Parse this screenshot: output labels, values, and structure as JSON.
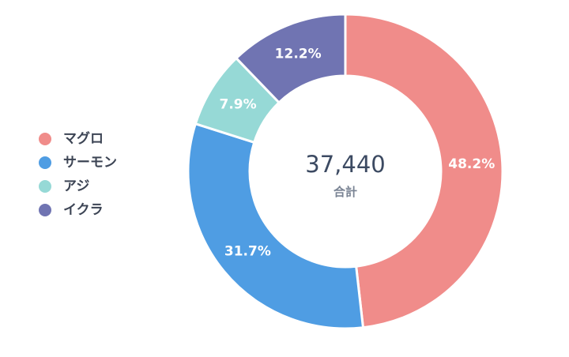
{
  "chart_data": {
    "type": "pie",
    "categories": [
      "マグロ",
      "サーモン",
      "アジ",
      "イクラ"
    ],
    "values": [
      48.2,
      31.7,
      7.9,
      12.2
    ],
    "value_labels": [
      "48.2%",
      "31.7%",
      "7.9%",
      "12.2%"
    ],
    "colors": [
      "#f08c8a",
      "#4f9de3",
      "#96d9d6",
      "#7074b2"
    ],
    "center_total": "37,440",
    "center_label": "合計",
    "legend_position": "left"
  }
}
